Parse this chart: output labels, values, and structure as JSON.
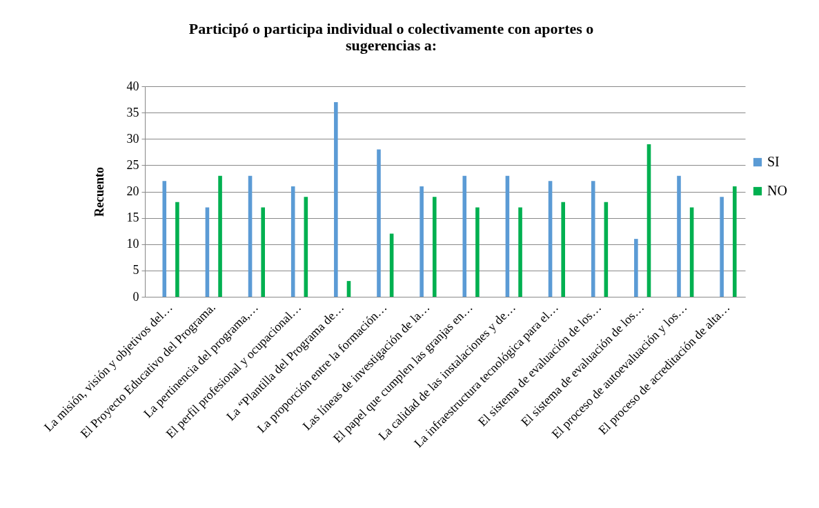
{
  "chart_data": {
    "type": "bar",
    "title": "Participó o  participa  individual o colectivamente  con aportes o\nsugerencias a:",
    "ylabel": "Recuento",
    "categories": [
      "La misión, visión y objetivos del…",
      "El  Proyecto Educativo del Programa.",
      "La pertinencia del programa,…",
      "El perfil profesional y ocupacional…",
      "La “Plantilla del Programa de…",
      "La proporción entre la formación…",
      "Las líneas de investigación  de la…",
      "El papel que cumplen las  granjas en…",
      "La calidad de las instalaciones y de…",
      "La infraestructura tecnológica para el…",
      "El sistema de evaluación de los…",
      "El sistema de  evaluación  de los…",
      "El proceso de autoevaluación y los…",
      "El proceso de acreditación de alta…"
    ],
    "series": [
      {
        "name": "SI",
        "color": "#5b9bd5",
        "values": [
          22,
          17,
          23,
          21,
          37,
          28,
          21,
          23,
          23,
          22,
          22,
          11,
          23,
          19
        ]
      },
      {
        "name": "NO",
        "color": "#00b050",
        "values": [
          18,
          23,
          17,
          19,
          3,
          12,
          19,
          17,
          17,
          18,
          18,
          29,
          17,
          21
        ]
      }
    ],
    "ylim": [
      0,
      40
    ],
    "yticks": [
      0,
      5,
      10,
      15,
      20,
      25,
      30,
      35,
      40
    ],
    "grid": "y",
    "legend": "right"
  }
}
